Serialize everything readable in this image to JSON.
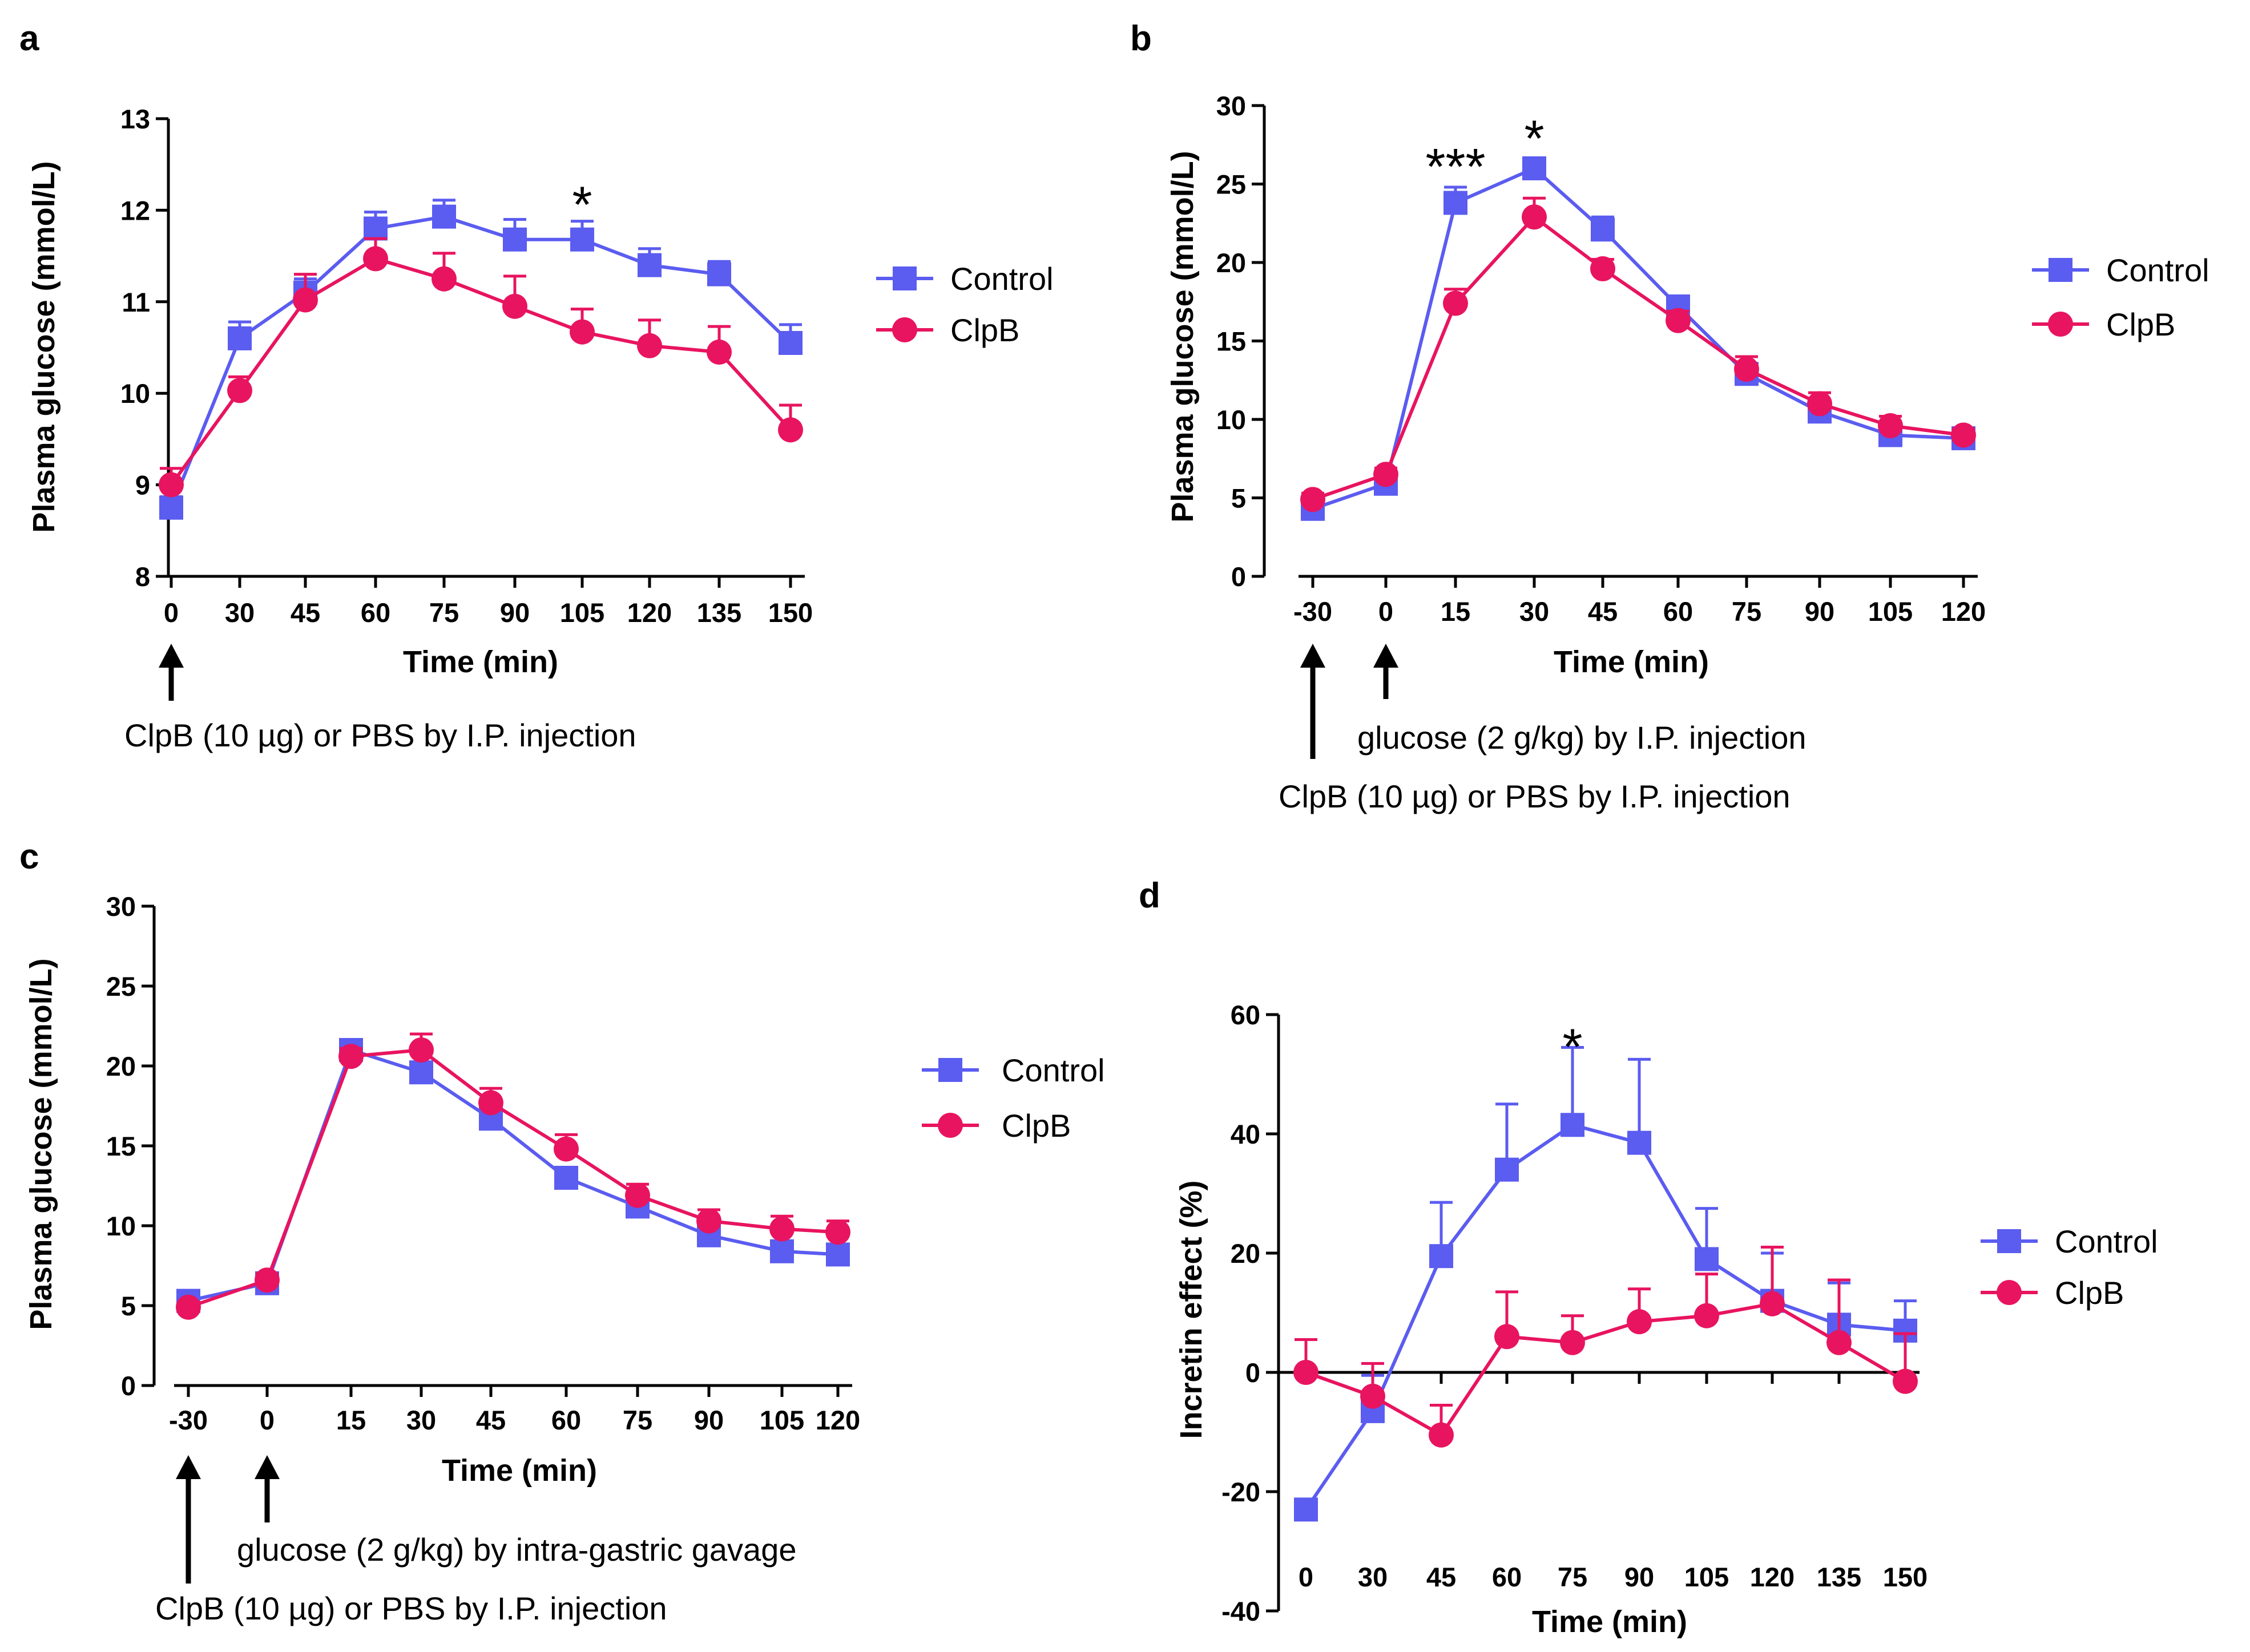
{
  "colors": {
    "control": "#5b5cf0",
    "clpb": "#e8145f",
    "axis": "#000000"
  },
  "icons": {
    "control_marker": "square-marker-icon",
    "clpb_marker": "circle-marker-icon",
    "arrow": "up-arrow-icon"
  },
  "chart_data": [
    {
      "panel": "a",
      "type": "line",
      "ylabel": "Plasma glucose (mmol/L)",
      "xlabel": "Time (min)",
      "ylim": [
        8,
        13
      ],
      "yticks": [
        8,
        9,
        10,
        11,
        12,
        13
      ],
      "categories": [
        "0",
        "30",
        "45",
        "60",
        "75",
        "90",
        "105",
        "120",
        "135",
        "150"
      ],
      "legend": [
        "Control",
        "ClpB"
      ],
      "series": [
        {
          "name": "Control",
          "values": [
            8.75,
            10.6,
            11.1,
            11.8,
            11.93,
            11.68,
            11.68,
            11.4,
            11.3,
            10.55
          ],
          "err": [
            0.12,
            0.18,
            0.15,
            0.18,
            0.18,
            0.22,
            0.2,
            0.18,
            0.14,
            0.2
          ]
        },
        {
          "name": "ClpB",
          "values": [
            9.0,
            10.03,
            11.02,
            11.47,
            11.25,
            10.95,
            10.67,
            10.52,
            10.45,
            9.6
          ],
          "err": [
            0.18,
            0.15,
            0.28,
            0.22,
            0.28,
            0.33,
            0.25,
            0.28,
            0.28,
            0.27
          ]
        }
      ],
      "significance": [
        {
          "category": "105",
          "label": "*"
        }
      ],
      "annotations": [
        {
          "text": "ClpB (10 µg) or PBS by I.P. injection",
          "arrow_at": "0"
        }
      ]
    },
    {
      "panel": "b",
      "type": "line",
      "ylabel": "Plasma glucose (mmol/L)",
      "xlabel": "Time (min)",
      "ylim": [
        0,
        30
      ],
      "yticks": [
        0,
        5,
        10,
        15,
        20,
        25,
        30
      ],
      "categories": [
        "-30",
        "0",
        "15",
        "30",
        "45",
        "60",
        "75",
        "90",
        "105",
        "120"
      ],
      "legend": [
        "Control",
        "ClpB"
      ],
      "series": [
        {
          "name": "Control",
          "values": [
            4.3,
            5.9,
            23.8,
            26.0,
            22.1,
            17.2,
            12.9,
            10.5,
            9.0,
            8.8
          ],
          "err": [
            0.4,
            0.4,
            1.0,
            0.6,
            0.8,
            0.5,
            0.6,
            0.5,
            0.4,
            0.4
          ]
        },
        {
          "name": "ClpB",
          "values": [
            4.9,
            6.5,
            17.4,
            22.9,
            19.6,
            16.3,
            13.2,
            11.0,
            9.6,
            9.0
          ],
          "err": [
            0.4,
            0.4,
            0.9,
            1.2,
            0.6,
            0.6,
            0.8,
            0.7,
            0.6,
            0.4
          ]
        }
      ],
      "significance": [
        {
          "category": "15",
          "label": "***"
        },
        {
          "category": "30",
          "label": "*"
        }
      ],
      "annotations": [
        {
          "text": "glucose (2 g/kg) by I.P. injection",
          "arrow_at": "0"
        },
        {
          "text": "ClpB (10 µg) or PBS by I.P. injection",
          "arrow_at": "-30"
        }
      ]
    },
    {
      "panel": "c",
      "type": "line",
      "ylabel": "Plasma glucose (mmol/L)",
      "xlabel": "Time (min)",
      "ylim": [
        0,
        30
      ],
      "yticks": [
        0,
        5,
        10,
        15,
        20,
        25,
        30
      ],
      "categories": [
        "-30",
        "0",
        "15",
        "30",
        "45",
        "60",
        "75",
        "90",
        "105",
        "120"
      ],
      "legend": [
        "Control",
        "ClpB"
      ],
      "series": [
        {
          "name": "Control",
          "values": [
            5.3,
            6.4,
            21.0,
            19.6,
            16.7,
            13.0,
            11.2,
            9.4,
            8.4,
            8.2
          ],
          "err": [
            0.4,
            0.4,
            0.5,
            0.6,
            0.6,
            0.6,
            0.5,
            0.5,
            0.4,
            0.4
          ]
        },
        {
          "name": "ClpB",
          "values": [
            4.9,
            6.6,
            20.6,
            21.0,
            17.7,
            14.8,
            11.9,
            10.3,
            9.8,
            9.6
          ],
          "err": [
            0.3,
            0.4,
            0.5,
            1.0,
            0.9,
            0.9,
            0.7,
            0.7,
            0.8,
            0.7
          ]
        }
      ],
      "significance": [],
      "annotations": [
        {
          "text": "glucose (2 g/kg) by intra-gastric gavage",
          "arrow_at": "0"
        },
        {
          "text": "ClpB (10 µg) or PBS by I.P. injection",
          "arrow_at": "-30"
        }
      ]
    },
    {
      "panel": "d",
      "type": "line",
      "ylabel": "Incretin effect (%)",
      "xlabel": "Time (min)",
      "ylim": [
        -40,
        60
      ],
      "yticks": [
        -40,
        -20,
        0,
        20,
        40,
        60
      ],
      "categories": [
        "0",
        "30",
        "45",
        "60",
        "75",
        "90",
        "105",
        "120",
        "135",
        "150"
      ],
      "legend": [
        "Control",
        "ClpB"
      ],
      "series": [
        {
          "name": "Control",
          "values": [
            -23.0,
            -6.5,
            19.5,
            34.0,
            41.5,
            38.5,
            19.0,
            12.0,
            8.0,
            7.0
          ],
          "err": [
            1.5,
            6.0,
            9.0,
            11.0,
            13.0,
            14.0,
            8.5,
            8.0,
            7.0,
            5.0
          ]
        },
        {
          "name": "ClpB",
          "values": [
            0.0,
            -4.0,
            -10.5,
            6.0,
            5.0,
            8.5,
            9.5,
            11.5,
            5.0,
            -1.5
          ],
          "err": [
            5.5,
            5.5,
            5.0,
            7.5,
            4.5,
            5.5,
            7.0,
            9.5,
            10.5,
            8.0
          ]
        }
      ],
      "significance": [
        {
          "category": "75",
          "label": "*"
        }
      ],
      "annotations": []
    }
  ]
}
